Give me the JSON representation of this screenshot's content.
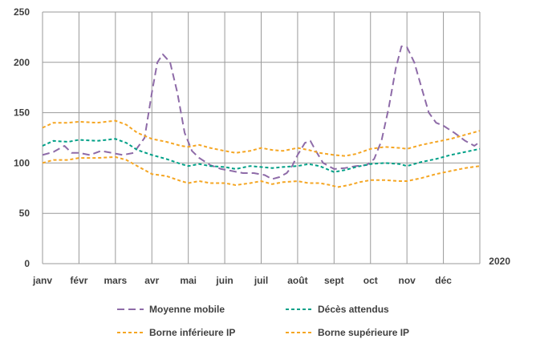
{
  "chart_data": {
    "type": "line",
    "categories": [
      "janv",
      "févr",
      "mars",
      "avr",
      "mai",
      "juin",
      "juil",
      "août",
      "sept",
      "oct",
      "nov",
      "déc"
    ],
    "x": [
      1,
      2,
      3,
      4,
      5,
      6,
      7,
      8,
      9,
      10,
      11,
      12,
      13
    ],
    "year_label": "2020",
    "ylim": [
      0,
      250
    ],
    "yticks": [
      "0",
      "50",
      "100",
      "150",
      "200",
      "250"
    ],
    "grid": true,
    "legend_position": "bottom",
    "series": [
      {
        "name": "Moyenne mobile",
        "color": "#8E6BA8",
        "dash": "long",
        "points": [
          [
            1.0,
            108
          ],
          [
            1.3,
            111
          ],
          [
            1.6,
            117
          ],
          [
            1.8,
            110
          ],
          [
            2.0,
            110
          ],
          [
            2.3,
            108
          ],
          [
            2.6,
            112
          ],
          [
            2.9,
            110
          ],
          [
            3.2,
            108
          ],
          [
            3.5,
            110
          ],
          [
            3.8,
            125
          ],
          [
            4.0,
            170
          ],
          [
            4.15,
            200
          ],
          [
            4.3,
            208
          ],
          [
            4.5,
            200
          ],
          [
            4.7,
            170
          ],
          [
            4.9,
            130
          ],
          [
            5.1,
            112
          ],
          [
            5.3,
            105
          ],
          [
            5.6,
            98
          ],
          [
            5.9,
            94
          ],
          [
            6.2,
            92
          ],
          [
            6.5,
            90
          ],
          [
            6.8,
            90
          ],
          [
            7.1,
            88
          ],
          [
            7.3,
            84
          ],
          [
            7.5,
            86
          ],
          [
            7.7,
            90
          ],
          [
            7.85,
            97
          ],
          [
            8.0,
            108
          ],
          [
            8.2,
            120
          ],
          [
            8.35,
            122
          ],
          [
            8.5,
            112
          ],
          [
            8.7,
            100
          ],
          [
            9.0,
            94
          ],
          [
            9.3,
            95
          ],
          [
            9.6,
            97
          ],
          [
            9.9,
            98
          ],
          [
            10.1,
            104
          ],
          [
            10.3,
            122
          ],
          [
            10.5,
            155
          ],
          [
            10.7,
            195
          ],
          [
            10.85,
            216
          ],
          [
            11.0,
            215
          ],
          [
            11.2,
            200
          ],
          [
            11.4,
            175
          ],
          [
            11.6,
            150
          ],
          [
            11.8,
            140
          ],
          [
            12.0,
            137
          ],
          [
            12.3,
            130
          ],
          [
            12.6,
            122
          ],
          [
            12.85,
            117
          ],
          [
            13.0,
            121
          ]
        ]
      },
      {
        "name": "Décès attendus",
        "color": "#00A087",
        "dash": "short",
        "points": [
          [
            1.0,
            117
          ],
          [
            1.3,
            122
          ],
          [
            1.7,
            121
          ],
          [
            2.0,
            123
          ],
          [
            2.5,
            122
          ],
          [
            3.0,
            124
          ],
          [
            3.3,
            120
          ],
          [
            3.6,
            113
          ],
          [
            4.0,
            108
          ],
          [
            4.4,
            104
          ],
          [
            4.8,
            99
          ],
          [
            5.0,
            97
          ],
          [
            5.3,
            99
          ],
          [
            5.6,
            97
          ],
          [
            6.0,
            96
          ],
          [
            6.3,
            94
          ],
          [
            6.7,
            97
          ],
          [
            7.0,
            96
          ],
          [
            7.3,
            95
          ],
          [
            7.6,
            96
          ],
          [
            8.0,
            97
          ],
          [
            8.3,
            99
          ],
          [
            8.6,
            97
          ],
          [
            9.0,
            91
          ],
          [
            9.3,
            93
          ],
          [
            9.6,
            96
          ],
          [
            10.0,
            99
          ],
          [
            10.4,
            100
          ],
          [
            10.8,
            99
          ],
          [
            11.0,
            97
          ],
          [
            11.4,
            101
          ],
          [
            11.8,
            104
          ],
          [
            12.2,
            108
          ],
          [
            12.6,
            111
          ],
          [
            13.0,
            114
          ]
        ]
      },
      {
        "name": "Borne inférieure IP",
        "color": "#F5A623",
        "dash": "short",
        "points": [
          [
            1.0,
            100
          ],
          [
            1.3,
            103
          ],
          [
            1.7,
            103
          ],
          [
            2.0,
            105
          ],
          [
            2.5,
            105
          ],
          [
            3.0,
            106
          ],
          [
            3.3,
            103
          ],
          [
            3.6,
            97
          ],
          [
            4.0,
            89
          ],
          [
            4.4,
            87
          ],
          [
            4.8,
            82
          ],
          [
            5.0,
            80
          ],
          [
            5.3,
            82
          ],
          [
            5.6,
            80
          ],
          [
            6.0,
            80
          ],
          [
            6.3,
            78
          ],
          [
            6.7,
            80
          ],
          [
            7.0,
            82
          ],
          [
            7.3,
            79
          ],
          [
            7.6,
            81
          ],
          [
            8.0,
            82
          ],
          [
            8.3,
            80
          ],
          [
            8.6,
            80
          ],
          [
            8.9,
            78
          ],
          [
            9.1,
            76
          ],
          [
            9.4,
            78
          ],
          [
            9.7,
            81
          ],
          [
            10.0,
            83
          ],
          [
            10.4,
            83
          ],
          [
            10.8,
            82
          ],
          [
            11.0,
            82
          ],
          [
            11.4,
            85
          ],
          [
            11.8,
            89
          ],
          [
            12.2,
            92
          ],
          [
            12.6,
            95
          ],
          [
            13.0,
            97
          ]
        ]
      },
      {
        "name": "Borne supérieure IP",
        "color": "#F5A623",
        "dash": "short",
        "points": [
          [
            1.0,
            135
          ],
          [
            1.3,
            140
          ],
          [
            1.7,
            140
          ],
          [
            2.0,
            141
          ],
          [
            2.5,
            140
          ],
          [
            3.0,
            142
          ],
          [
            3.3,
            138
          ],
          [
            3.6,
            130
          ],
          [
            4.0,
            124
          ],
          [
            4.4,
            121
          ],
          [
            4.8,
            117
          ],
          [
            5.0,
            116
          ],
          [
            5.3,
            118
          ],
          [
            5.6,
            115
          ],
          [
            6.0,
            112
          ],
          [
            6.3,
            110
          ],
          [
            6.7,
            112
          ],
          [
            7.0,
            115
          ],
          [
            7.3,
            113
          ],
          [
            7.6,
            112
          ],
          [
            8.0,
            115
          ],
          [
            8.3,
            113
          ],
          [
            8.6,
            110
          ],
          [
            9.0,
            108
          ],
          [
            9.3,
            107
          ],
          [
            9.6,
            109
          ],
          [
            10.0,
            114
          ],
          [
            10.4,
            116
          ],
          [
            10.8,
            115
          ],
          [
            11.0,
            114
          ],
          [
            11.4,
            118
          ],
          [
            11.8,
            121
          ],
          [
            12.2,
            124
          ],
          [
            12.6,
            128
          ],
          [
            13.0,
            132
          ]
        ]
      }
    ]
  }
}
